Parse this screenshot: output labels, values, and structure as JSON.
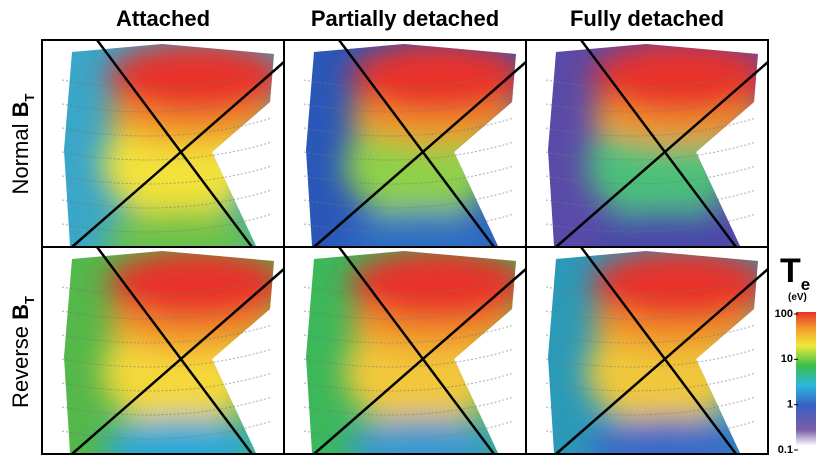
{
  "columns": [
    "Attached",
    "Partially detached",
    "Fully detached"
  ],
  "rows": [
    {
      "text": "Normal",
      "symbol": "B",
      "subscript": "T"
    },
    {
      "text": "Reverse",
      "symbol": "B",
      "subscript": "T"
    }
  ],
  "colorbar": {
    "symbol": "T",
    "subscript": "e",
    "unit": "(eV)",
    "log": true,
    "lim": [
      0.1,
      100
    ],
    "ticks": [
      100,
      10,
      1,
      0.1
    ]
  }
}
